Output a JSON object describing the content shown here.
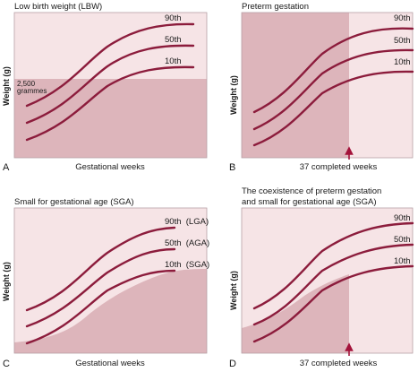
{
  "colors": {
    "background_light": "#f6e4e6",
    "shaded_region": "#ddb5bb",
    "curve": "#8c1c3c",
    "arrow": "#a3123a"
  },
  "percentiles": [
    "90th",
    "50th",
    "10th"
  ],
  "panels": {
    "A": {
      "letter": "A",
      "title": "Low birth weight (LBW)",
      "xlabel": "Gestational weeks",
      "ylabel": "Weight (g)",
      "threshold_label_line1": "2,500",
      "threshold_label_line2": "grammes",
      "curve_labels": [
        "90th",
        "50th",
        "10th"
      ]
    },
    "B": {
      "letter": "B",
      "title": "Preterm gestation",
      "xlabel": "37 completed weeks",
      "ylabel": "Weight (g)",
      "curve_labels": [
        "90th",
        "50th",
        "10th"
      ]
    },
    "C": {
      "letter": "C",
      "title": "Small for gestational age (SGA)",
      "xlabel": "Gestational weeks",
      "ylabel": "Weight (g)",
      "curve_labels": [
        "90th  (LGA)",
        "50th  (AGA)",
        "10th  (SGA)"
      ]
    },
    "D": {
      "letter": "D",
      "title_line1": "The coexistence of preterm gestation",
      "title_line2": "and small for gestational age (SGA)",
      "xlabel": "37 completed weeks",
      "ylabel": "Weight (g)",
      "curve_labels": [
        "90th",
        "50th",
        "10th"
      ]
    }
  }
}
